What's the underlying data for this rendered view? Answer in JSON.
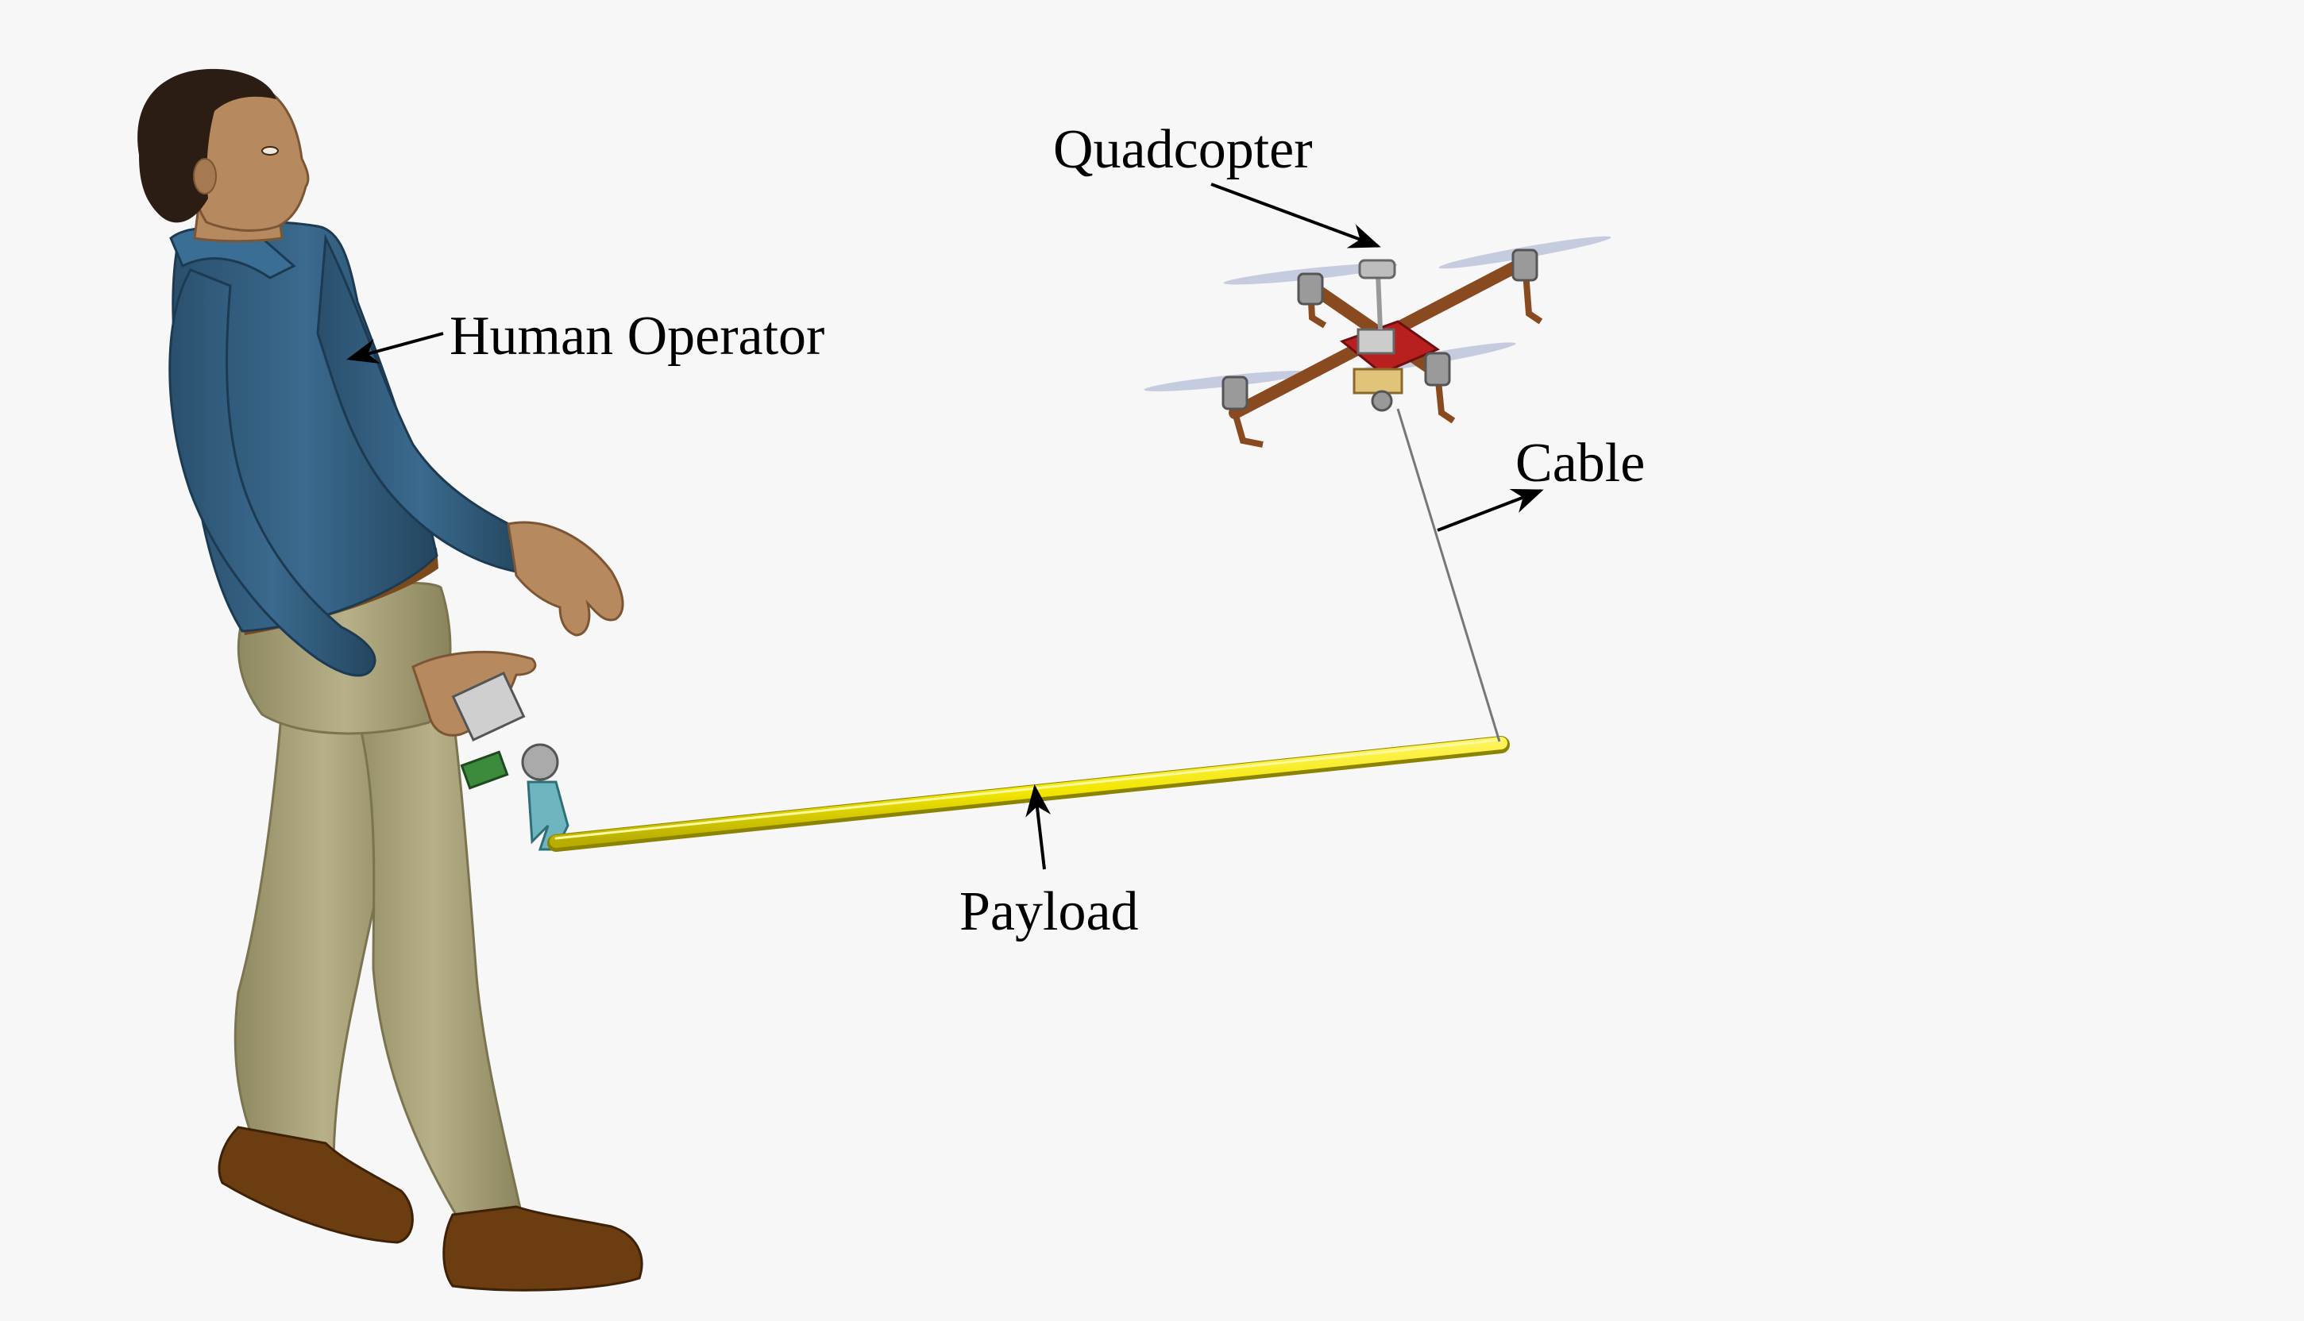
{
  "labels": {
    "quadcopter": "Quadcopter",
    "human_operator": "Human Operator",
    "cable": "Cable",
    "payload": "Payload"
  },
  "colors": {
    "background": "#f7f7f7",
    "shirt": "#2f5777",
    "pants": "#a9a27a",
    "skin": "#b68a5e",
    "hair": "#2b1d14",
    "shoes": "#6b3d10",
    "payload_rod": "#f2e600",
    "drone_frame": "#8a4a1f",
    "drone_center": "#b81f1f",
    "motor": "#9a9a9a",
    "cable": "#777777",
    "arrow": "#000000"
  }
}
